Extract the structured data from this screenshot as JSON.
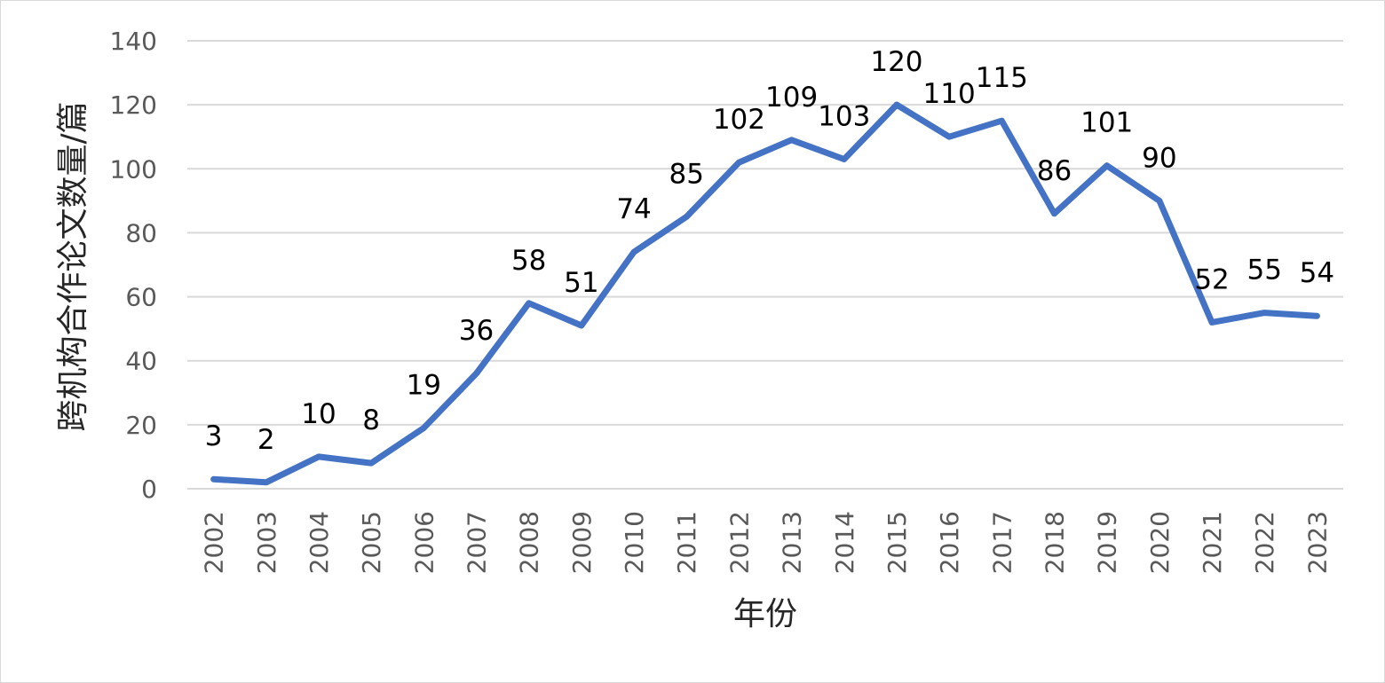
{
  "chart_data": {
    "type": "line",
    "title": "",
    "xlabel": "年份",
    "ylabel": "跨机构合作论文数量/篇",
    "ylim": [
      0,
      140
    ],
    "yticks": [
      0,
      20,
      40,
      60,
      80,
      100,
      120,
      140
    ],
    "grid": true,
    "legend": "none",
    "categories": [
      "2002",
      "2003",
      "2004",
      "2005",
      "2006",
      "2007",
      "2008",
      "2009",
      "2010",
      "2011",
      "2012",
      "2013",
      "2014",
      "2015",
      "2016",
      "2017",
      "2018",
      "2019",
      "2020",
      "2021",
      "2022",
      "2023"
    ],
    "series": [
      {
        "values": [
          3,
          2,
          10,
          8,
          19,
          36,
          58,
          51,
          74,
          85,
          102,
          109,
          103,
          120,
          110,
          115,
          86,
          101,
          90,
          52,
          55,
          54
        ],
        "color": "#4472c4"
      }
    ]
  }
}
